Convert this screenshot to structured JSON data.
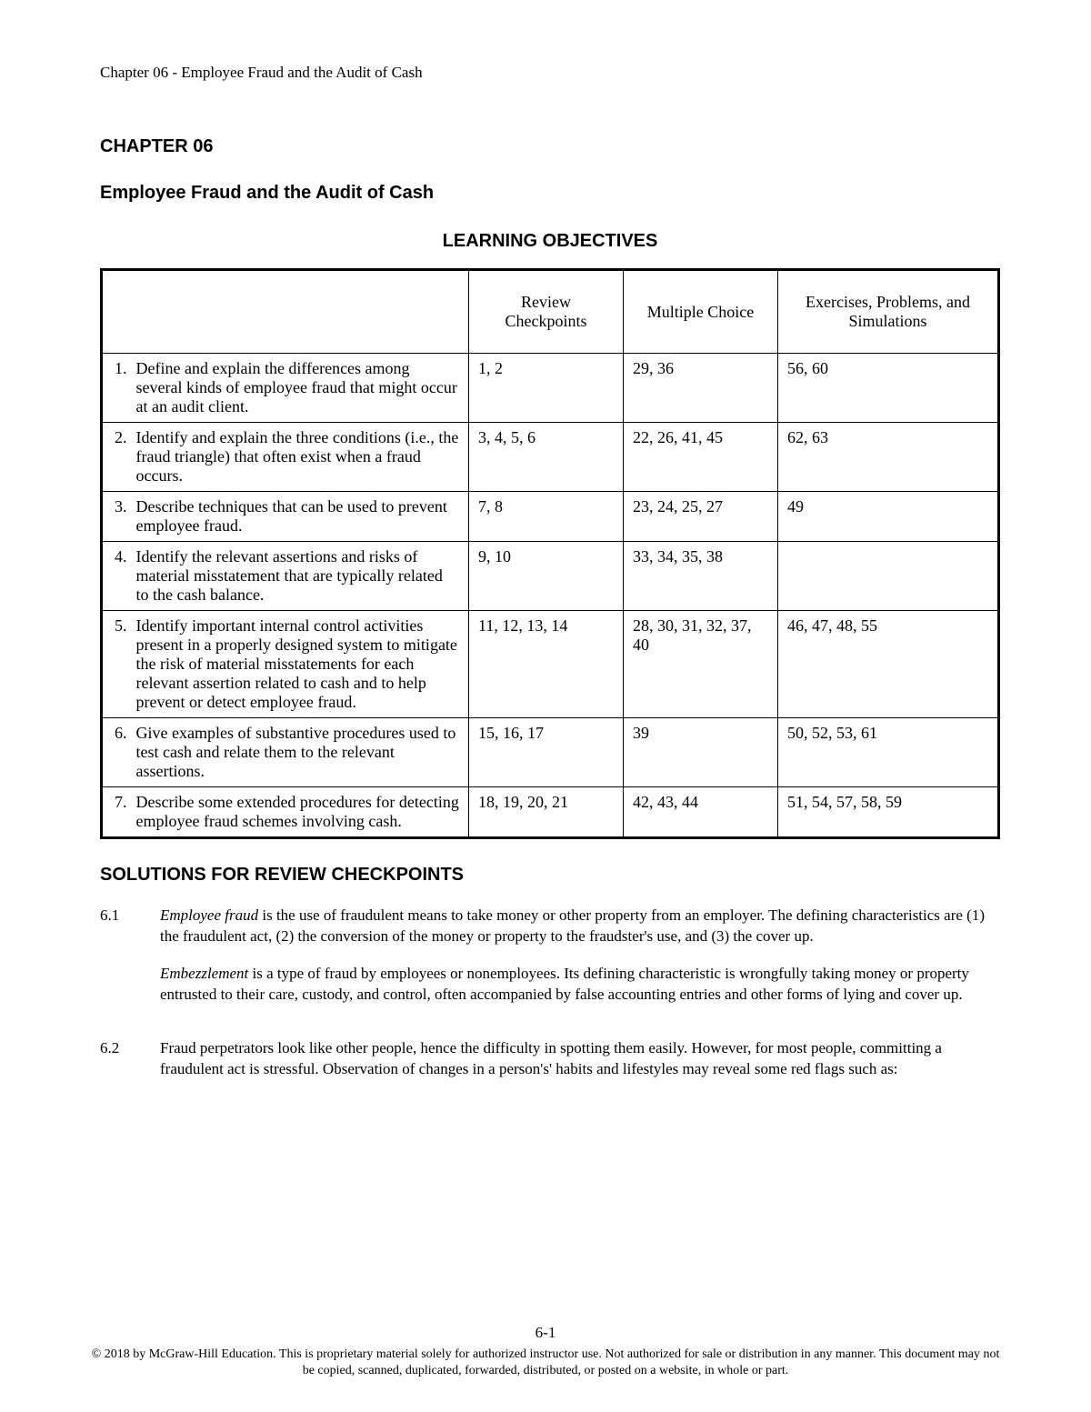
{
  "header": "Chapter 06 - Employee Fraud and the Audit of Cash",
  "chapter_num": "CHAPTER 06",
  "chapter_title": "Employee Fraud and the Audit of Cash",
  "learning_objectives_title": "LEARNING OBJECTIVES",
  "columns": {
    "blank": "",
    "review": "Review Checkpoints",
    "mc": "Multiple Choice",
    "ex": "Exercises, Problems, and Simulations"
  },
  "rows": [
    {
      "n": "1.",
      "obj": "Define and explain the differences among several kinds of employee fraud that might occur at an audit client.",
      "rc": "1, 2",
      "mc": "29, 36",
      "ex": "56, 60"
    },
    {
      "n": "2.",
      "obj": "Identify and explain the three conditions (i.e., the fraud triangle) that often exist when a fraud occurs.",
      "rc": "3, 4, 5, 6",
      "mc": "22, 26, 41, 45",
      "ex": "62, 63"
    },
    {
      "n": "3.",
      "obj": "Describe techniques that can be used to prevent employee fraud.",
      "rc": "7, 8",
      "mc": "23, 24, 25, 27",
      "ex": "49"
    },
    {
      "n": "4.",
      "obj": "Identify the relevant assertions and risks of material misstatement that are typically related to the cash balance.",
      "rc": "9, 10",
      "mc": "33, 34, 35, 38",
      "ex": ""
    },
    {
      "n": "5.",
      "obj": "Identify important internal control activities present in a properly designed system to mitigate the risk of material misstatements for each relevant assertion related to cash and to help prevent or detect employee fraud.",
      "rc": "11, 12, 13, 14",
      "mc": "28, 30, 31, 32, 37, 40",
      "ex": "46, 47, 48, 55"
    },
    {
      "n": "6.",
      "obj": "Give examples of substantive procedures used to test cash and relate them to the relevant assertions.",
      "rc": "15, 16, 17",
      "mc": "39",
      "ex": "50, 52, 53, 61"
    },
    {
      "n": "7.",
      "obj": "Describe some extended procedures for detecting employee fraud schemes involving cash.",
      "rc": "18, 19, 20, 21",
      "mc": "42, 43, 44",
      "ex": "51, 54, 57, 58, 59"
    }
  ],
  "solutions_title": "SOLUTIONS FOR REVIEW CHECKPOINTS",
  "sol_61": {
    "num": "6.1",
    "p1_em": "Employee fraud",
    "p1_rest": " is the use of fraudulent means to take money or other property from an employer. The defining characteristics are (1) the fraudulent act, (2) the conversion of the money or property to the fraudster's use, and (3) the cover up.",
    "p2_em": "Embezzlement",
    "p2_rest": " is a type of fraud by employees or nonemployees. Its defining characteristic is wrongfully taking money or property entrusted to their care, custody, and control, often accompanied by false accounting entries and other forms of lying and cover up."
  },
  "sol_62": {
    "num": "6.2",
    "p1": "Fraud perpetrators look like other people, hence the difficulty in spotting them easily. However, for most people, committing a fraudulent act is stressful. Observation of changes in a person's' habits and lifestyles may reveal some red flags such as:"
  },
  "page_num": "6-1",
  "copyright": "© 2018 by McGraw-Hill Education. This is proprietary material solely for authorized instructor use. Not authorized for sale or distribution in any manner. This document may not be copied, scanned, duplicated, forwarded, distributed, or posted on a website, in whole or part."
}
